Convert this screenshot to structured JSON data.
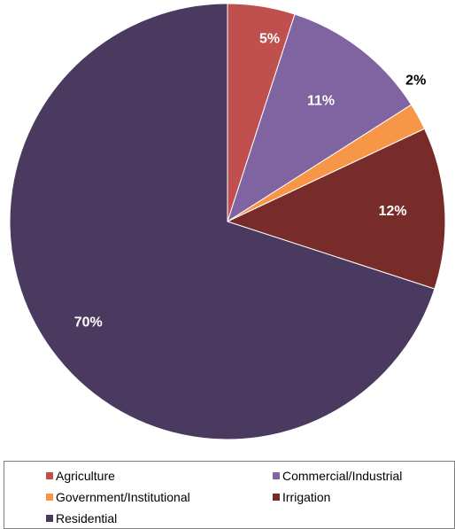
{
  "chart_data": {
    "type": "pie",
    "title": "",
    "categories": [
      "Agriculture",
      "Commercial/Industrial",
      "Government/Institutional",
      "Irrigation",
      "Residential"
    ],
    "values": [
      5,
      11,
      2,
      12,
      70
    ],
    "labels": [
      "5%",
      "11%",
      "2%",
      "12%",
      "70%"
    ],
    "colors": [
      "#C0504D",
      "#8064A2",
      "#F79646",
      "#772C2A",
      "#4B3A5F"
    ],
    "label_colors": [
      "#ffffff",
      "#ffffff",
      "#000000",
      "#ffffff",
      "#ffffff"
    ],
    "start_angle_deg": 0,
    "direction": "clockwise",
    "legend_position": "bottom"
  }
}
